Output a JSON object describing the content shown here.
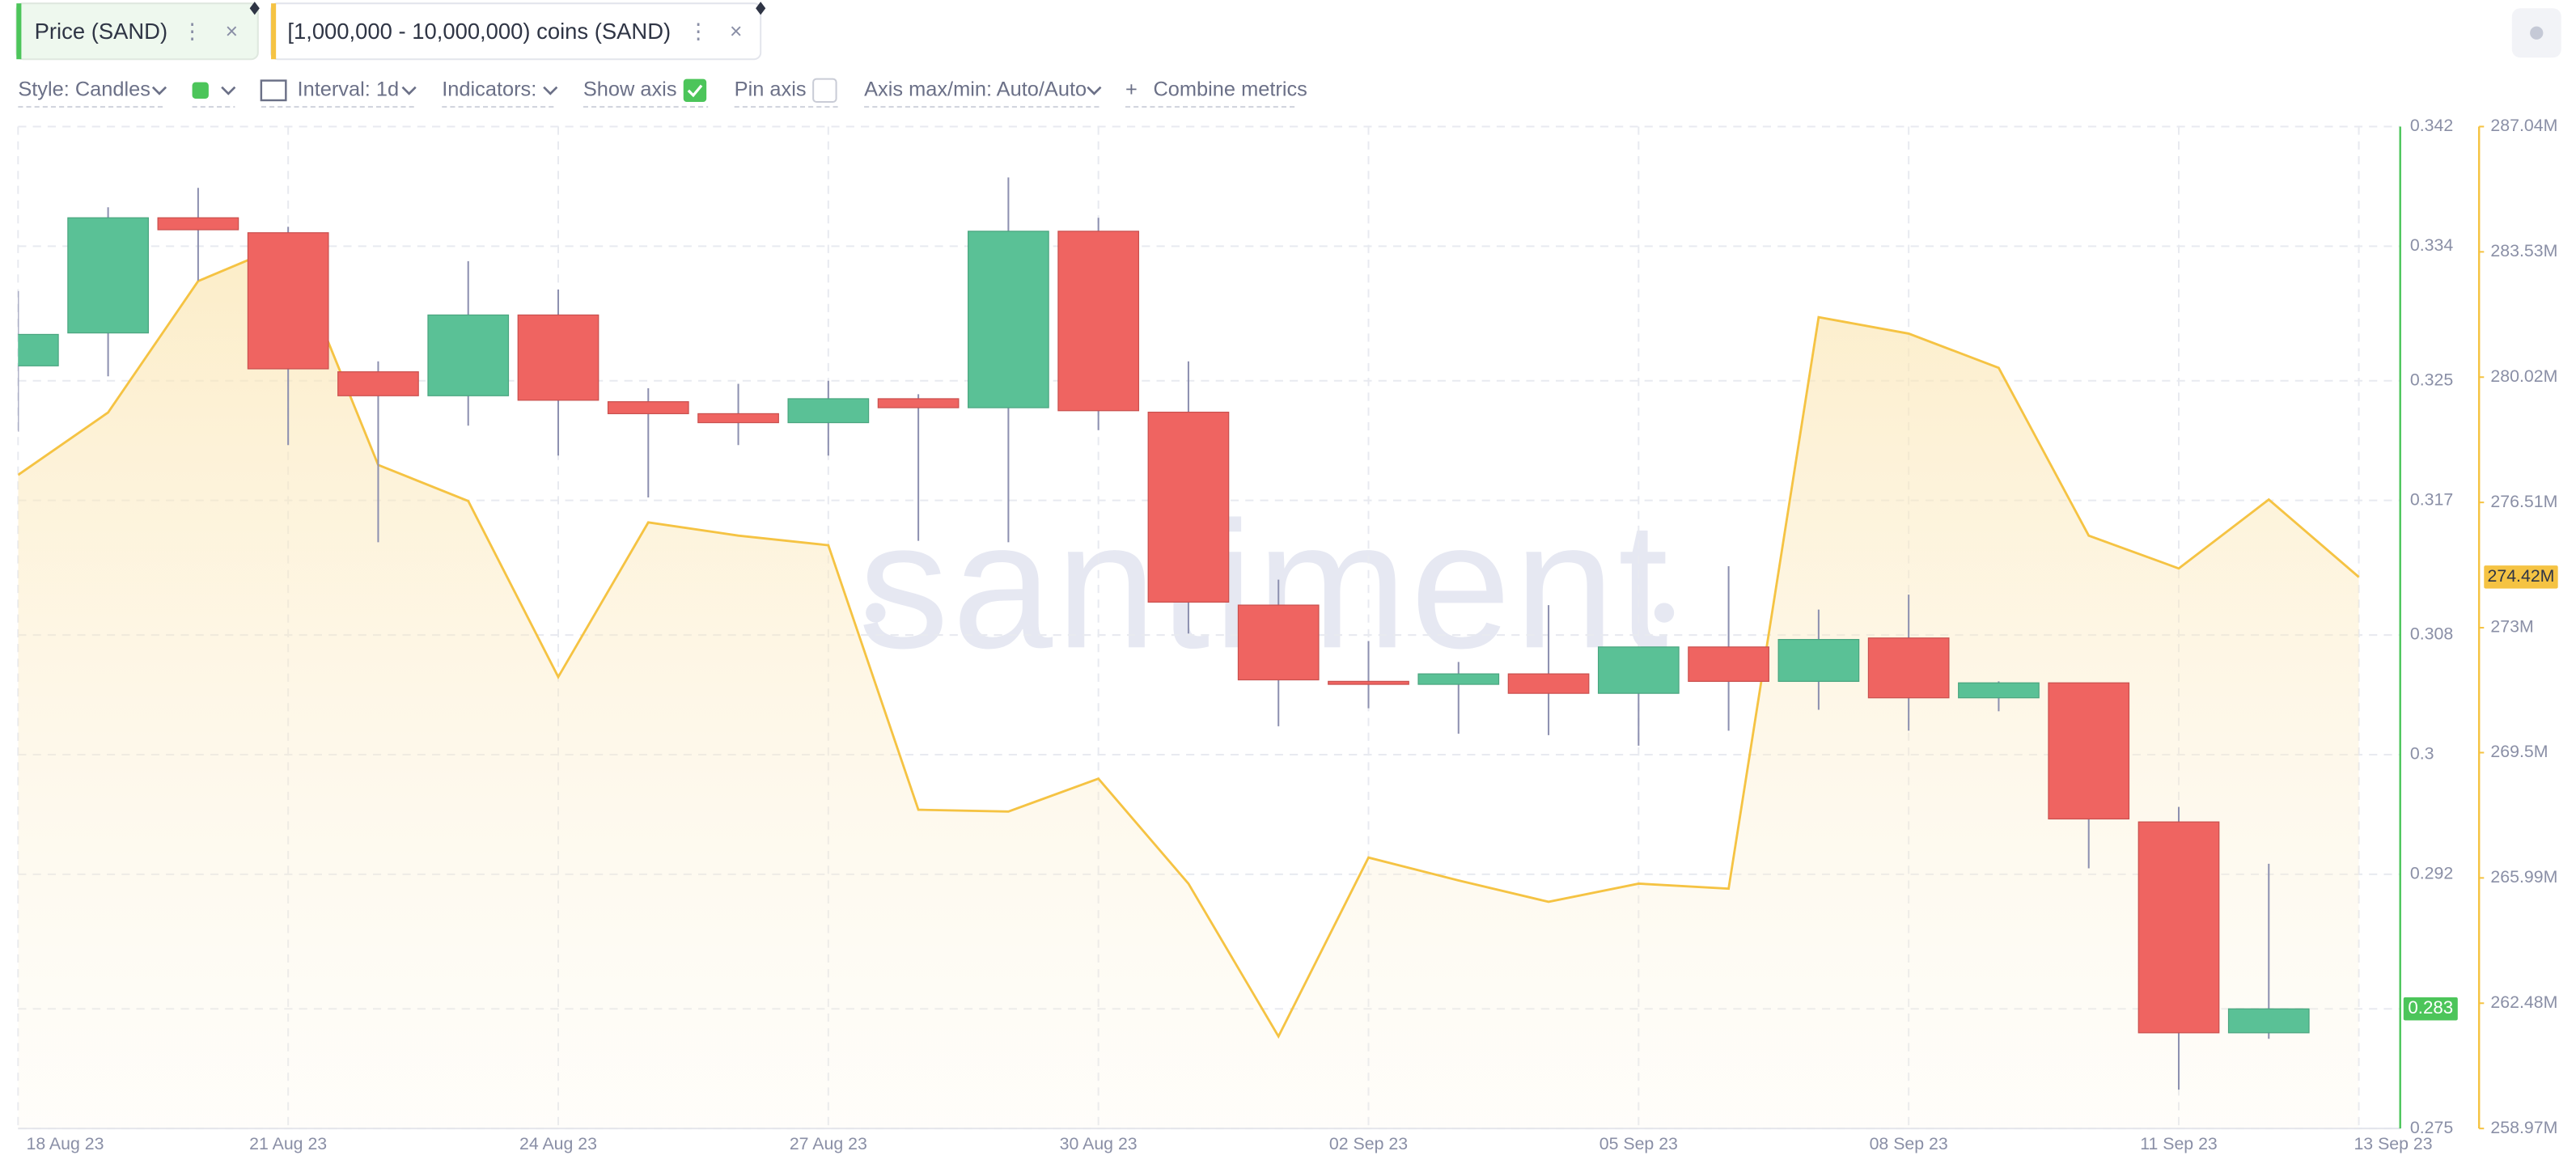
{
  "chart_data": {
    "type": "candlestick",
    "watermark": "santiment",
    "x": [
      "2023-08-18",
      "2023-08-19",
      "2023-08-20",
      "2023-08-21",
      "2023-08-22",
      "2023-08-23",
      "2023-08-24",
      "2023-08-25",
      "2023-08-26",
      "2023-08-27",
      "2023-08-28",
      "2023-08-29",
      "2023-08-30",
      "2023-08-31",
      "2023-09-01",
      "2023-09-02",
      "2023-09-03",
      "2023-09-04",
      "2023-09-05",
      "2023-09-06",
      "2023-09-07",
      "2023-09-08",
      "2023-09-09",
      "2023-09-10",
      "2023-09-11",
      "2023-09-12",
      "2023-09-13"
    ],
    "xticks": [
      {
        "value": "2023-08-18",
        "label": "18 Aug 23"
      },
      {
        "value": "2023-08-21",
        "label": "21 Aug 23"
      },
      {
        "value": "2023-08-24",
        "label": "24 Aug 23"
      },
      {
        "value": "2023-08-27",
        "label": "27 Aug 23"
      },
      {
        "value": "2023-08-30",
        "label": "30 Aug 23"
      },
      {
        "value": "2023-09-02",
        "label": "02 Sep 23"
      },
      {
        "value": "2023-09-05",
        "label": "05 Sep 23"
      },
      {
        "value": "2023-09-08",
        "label": "08 Sep 23"
      },
      {
        "value": "2023-09-11",
        "label": "11 Sep 23"
      },
      {
        "value": "2023-09-13",
        "label": "13 Sep 23"
      }
    ],
    "ylim": [
      0.275,
      0.342
    ],
    "yticks": [
      0.275,
      0.283,
      0.292,
      0.3,
      0.308,
      0.317,
      0.325,
      0.334,
      0.342
    ],
    "y2lim": [
      258970000,
      287040000
    ],
    "y2ticks": [
      {
        "value": 258970000,
        "label": "258.97M"
      },
      {
        "value": 262480000,
        "label": "262.48M"
      },
      {
        "value": 265990000,
        "label": "265.99M"
      },
      {
        "value": 269500000,
        "label": "269.5M"
      },
      {
        "value": 273000000,
        "label": "273M"
      },
      {
        "value": 276510000,
        "label": "276.51M"
      },
      {
        "value": 280020000,
        "label": "280.02M"
      },
      {
        "value": 283530000,
        "label": "283.53M"
      },
      {
        "value": 287040000,
        "label": "287.04M"
      }
    ],
    "grid": true,
    "series": [
      {
        "name": "Price (SAND)",
        "type": "candlestick",
        "color": "#4cc55a",
        "up_color": "#5ac196",
        "down_color": "#ef6461",
        "open": [
          0.326,
          0.3282,
          0.3359,
          0.3349,
          0.3256,
          0.324,
          0.3294,
          0.3236,
          0.3228,
          0.3222,
          0.3238,
          0.3232,
          0.335,
          0.3229,
          0.31,
          0.3049,
          0.3047,
          0.3054,
          0.3041,
          0.3072,
          0.3049,
          0.3078,
          0.3038,
          0.3048,
          0.2955,
          0.2814,
          null
        ],
        "high": [
          0.331,
          0.3366,
          0.3379,
          0.3353,
          0.3263,
          0.333,
          0.3311,
          0.3245,
          0.3248,
          0.325,
          0.3241,
          0.3386,
          0.3359,
          0.3263,
          0.3117,
          0.3076,
          0.3062,
          0.31,
          0.3072,
          0.3126,
          0.3097,
          0.3107,
          0.3049,
          0.3048,
          0.2965,
          0.2927,
          null
        ],
        "low": [
          0.3216,
          0.3253,
          0.3317,
          0.3207,
          0.3142,
          0.322,
          0.32,
          0.3172,
          0.3207,
          0.32,
          0.3143,
          0.3142,
          0.3217,
          0.3081,
          0.3019,
          0.3031,
          0.3014,
          0.3013,
          0.3006,
          0.3016,
          0.303,
          0.3016,
          0.3029,
          0.2924,
          0.2776,
          0.281,
          null
        ],
        "close": [
          0.3281,
          0.3359,
          0.3351,
          0.3258,
          0.324,
          0.3294,
          0.3237,
          0.3228,
          0.3222,
          0.3238,
          0.3232,
          0.335,
          0.323,
          0.3102,
          0.305,
          0.3047,
          0.3054,
          0.3041,
          0.3072,
          0.3049,
          0.3077,
          0.3038,
          0.3048,
          0.2957,
          0.2814,
          0.283,
          null
        ],
        "last_value_label": "0.283"
      },
      {
        "name": "[1,000,000 - 10,000,000) coins (SAND)",
        "type": "area",
        "axis": "y2",
        "color": "#f5c343",
        "values": [
          277280000,
          279030000,
          282710000,
          283770000,
          277560000,
          276550000,
          271620000,
          275950000,
          275580000,
          275310000,
          267900000,
          267850000,
          268770000,
          265830000,
          261550000,
          266560000,
          265920000,
          265320000,
          265830000,
          265690000,
          281700000,
          281240000,
          280280000,
          275580000,
          274660000,
          276590000,
          274420000
        ],
        "last_value_label": "274.42M"
      }
    ]
  },
  "toolbar": {
    "style": "Style: Candles",
    "interval": "Interval: 1d",
    "indicators": "Indicators:",
    "show_axis": "Show axis",
    "show_axis_checked": true,
    "pin_axis": "Pin axis",
    "pin_axis_checked": false,
    "axis_range": "Axis max/min: Auto/Auto",
    "combine": "Combine metrics"
  }
}
